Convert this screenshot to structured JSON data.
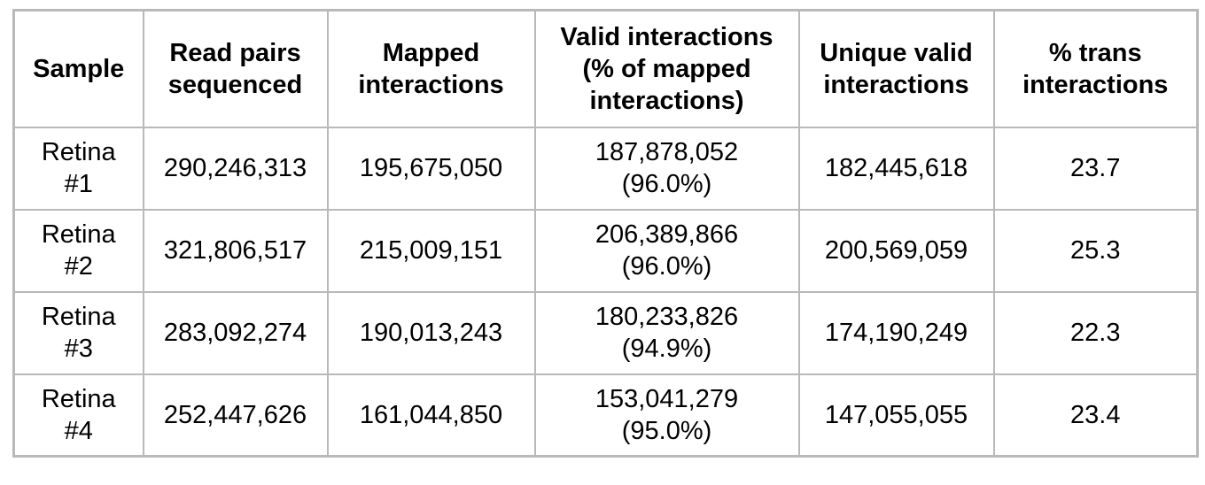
{
  "style": {
    "border_color": "#b9b9b9",
    "text_color": "#000000",
    "background_color": "#ffffff"
  },
  "table": {
    "columns": [
      {
        "label": "Sample"
      },
      {
        "label": "Read pairs sequenced"
      },
      {
        "label": "Mapped interactions"
      },
      {
        "label": "Valid interactions (% of mapped interactions)"
      },
      {
        "label": "Unique valid interactions"
      },
      {
        "label": "% trans interactions"
      }
    ],
    "rows": [
      {
        "sample_line1": "Retina",
        "sample_line2": "#1",
        "read_pairs": "290,246,313",
        "mapped": "195,675,050",
        "valid_count": "187,878,052",
        "valid_pct": "(96.0%)",
        "unique_valid": "182,445,618",
        "pct_trans": "23.7"
      },
      {
        "sample_line1": "Retina",
        "sample_line2": "#2",
        "read_pairs": "321,806,517",
        "mapped": "215,009,151",
        "valid_count": "206,389,866",
        "valid_pct": "(96.0%)",
        "unique_valid": "200,569,059",
        "pct_trans": "25.3"
      },
      {
        "sample_line1": "Retina",
        "sample_line2": "#3",
        "read_pairs": "283,092,274",
        "mapped": "190,013,243",
        "valid_count": "180,233,826",
        "valid_pct": "(94.9%)",
        "unique_valid": "174,190,249",
        "pct_trans": "22.3"
      },
      {
        "sample_line1": "Retina",
        "sample_line2": "#4",
        "read_pairs": "252,447,626",
        "mapped": "161,044,850",
        "valid_count": "153,041,279",
        "valid_pct": "(95.0%)",
        "unique_valid": "147,055,055",
        "pct_trans": "23.4"
      }
    ]
  }
}
